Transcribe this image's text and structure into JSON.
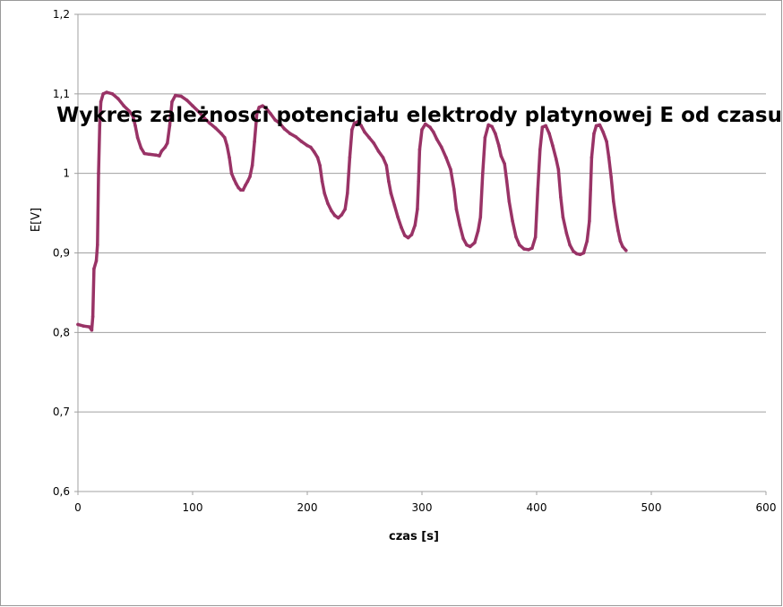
{
  "chart_data": {
    "type": "line",
    "title": "Wykres zależnosci potencjału elektrody platynowej E od czasu",
    "xlabel": "czas [s]",
    "ylabel": "E[V]",
    "xlim": [
      0,
      600
    ],
    "ylim": [
      0.6,
      1.2
    ],
    "x_ticks": [
      "0",
      "100",
      "200",
      "300",
      "400",
      "500",
      "600"
    ],
    "y_ticks": [
      "0,6",
      "0,7",
      "0,8",
      "0,9",
      "1",
      "1,1",
      "1,2"
    ],
    "grid": "horizontal",
    "legend": "none",
    "series": [
      {
        "color": "#993366",
        "points": [
          [
            0,
            0.81
          ],
          [
            5,
            0.808
          ],
          [
            10,
            0.807
          ],
          [
            12,
            0.803
          ],
          [
            13,
            0.82
          ],
          [
            14,
            0.88
          ],
          [
            16,
            0.89
          ],
          [
            17,
            0.91
          ],
          [
            18,
            1.0
          ],
          [
            19,
            1.06
          ],
          [
            20,
            1.09
          ],
          [
            22,
            1.1
          ],
          [
            25,
            1.102
          ],
          [
            30,
            1.1
          ],
          [
            35,
            1.094
          ],
          [
            40,
            1.085
          ],
          [
            45,
            1.078
          ],
          [
            48,
            1.072
          ],
          [
            50,
            1.06
          ],
          [
            52,
            1.045
          ],
          [
            55,
            1.032
          ],
          [
            58,
            1.025
          ],
          [
            62,
            1.024
          ],
          [
            68,
            1.023
          ],
          [
            71,
            1.022
          ],
          [
            73,
            1.028
          ],
          [
            76,
            1.033
          ],
          [
            78,
            1.038
          ],
          [
            80,
            1.06
          ],
          [
            82,
            1.09
          ],
          [
            85,
            1.098
          ],
          [
            90,
            1.097
          ],
          [
            95,
            1.092
          ],
          [
            100,
            1.085
          ],
          [
            105,
            1.078
          ],
          [
            110,
            1.07
          ],
          [
            115,
            1.063
          ],
          [
            120,
            1.057
          ],
          [
            125,
            1.05
          ],
          [
            128,
            1.045
          ],
          [
            130,
            1.035
          ],
          [
            132,
            1.02
          ],
          [
            134,
            1.0
          ],
          [
            136,
            0.993
          ],
          [
            138,
            0.987
          ],
          [
            140,
            0.982
          ],
          [
            142,
            0.979
          ],
          [
            144,
            0.979
          ],
          [
            146,
            0.985
          ],
          [
            148,
            0.99
          ],
          [
            150,
            0.996
          ],
          [
            152,
            1.01
          ],
          [
            154,
            1.04
          ],
          [
            156,
            1.075
          ],
          [
            158,
            1.083
          ],
          [
            161,
            1.085
          ],
          [
            164,
            1.082
          ],
          [
            168,
            1.075
          ],
          [
            172,
            1.067
          ],
          [
            176,
            1.063
          ],
          [
            180,
            1.056
          ],
          [
            185,
            1.05
          ],
          [
            190,
            1.046
          ],
          [
            195,
            1.04
          ],
          [
            200,
            1.035
          ],
          [
            203,
            1.033
          ],
          [
            206,
            1.027
          ],
          [
            209,
            1.02
          ],
          [
            211,
            1.01
          ],
          [
            213,
            0.99
          ],
          [
            215,
            0.975
          ],
          [
            218,
            0.962
          ],
          [
            221,
            0.953
          ],
          [
            224,
            0.947
          ],
          [
            227,
            0.944
          ],
          [
            230,
            0.948
          ],
          [
            233,
            0.955
          ],
          [
            235,
            0.975
          ],
          [
            237,
            1.02
          ],
          [
            239,
            1.055
          ],
          [
            241,
            1.063
          ],
          [
            244,
            1.065
          ],
          [
            247,
            1.06
          ],
          [
            250,
            1.052
          ],
          [
            254,
            1.045
          ],
          [
            258,
            1.038
          ],
          [
            262,
            1.028
          ],
          [
            266,
            1.02
          ],
          [
            269,
            1.01
          ],
          [
            271,
            0.99
          ],
          [
            273,
            0.975
          ],
          [
            276,
            0.96
          ],
          [
            279,
            0.945
          ],
          [
            282,
            0.932
          ],
          [
            285,
            0.922
          ],
          [
            288,
            0.919
          ],
          [
            291,
            0.923
          ],
          [
            294,
            0.935
          ],
          [
            296,
            0.955
          ],
          [
            297,
            0.99
          ],
          [
            298,
            1.03
          ],
          [
            300,
            1.055
          ],
          [
            303,
            1.062
          ],
          [
            307,
            1.058
          ],
          [
            310,
            1.052
          ],
          [
            313,
            1.043
          ],
          [
            317,
            1.033
          ],
          [
            321,
            1.02
          ],
          [
            325,
            1.005
          ],
          [
            328,
            0.98
          ],
          [
            330,
            0.955
          ],
          [
            333,
            0.935
          ],
          [
            336,
            0.918
          ],
          [
            339,
            0.91
          ],
          [
            342,
            0.908
          ],
          [
            346,
            0.913
          ],
          [
            349,
            0.928
          ],
          [
            351,
            0.945
          ],
          [
            353,
            1.0
          ],
          [
            355,
            1.045
          ],
          [
            358,
            1.061
          ],
          [
            361,
            1.059
          ],
          [
            364,
            1.05
          ],
          [
            367,
            1.035
          ],
          [
            369,
            1.022
          ],
          [
            372,
            1.012
          ],
          [
            374,
            0.99
          ],
          [
            376,
            0.965
          ],
          [
            379,
            0.94
          ],
          [
            382,
            0.92
          ],
          [
            385,
            0.91
          ],
          [
            389,
            0.905
          ],
          [
            393,
            0.904
          ],
          [
            396,
            0.906
          ],
          [
            399,
            0.92
          ],
          [
            401,
            0.98
          ],
          [
            403,
            1.03
          ],
          [
            405,
            1.058
          ],
          [
            408,
            1.06
          ],
          [
            411,
            1.05
          ],
          [
            414,
            1.035
          ],
          [
            417,
            1.018
          ],
          [
            419,
            1.005
          ],
          [
            421,
            0.97
          ],
          [
            423,
            0.945
          ],
          [
            426,
            0.925
          ],
          [
            429,
            0.91
          ],
          [
            432,
            0.902
          ],
          [
            435,
            0.899
          ],
          [
            438,
            0.898
          ],
          [
            441,
            0.9
          ],
          [
            444,
            0.915
          ],
          [
            446,
            0.94
          ],
          [
            447,
            0.98
          ],
          [
            448,
            1.02
          ],
          [
            450,
            1.05
          ],
          [
            452,
            1.06
          ],
          [
            455,
            1.061
          ],
          [
            458,
            1.052
          ],
          [
            461,
            1.04
          ],
          [
            463,
            1.02
          ],
          [
            465,
            0.995
          ],
          [
            467,
            0.965
          ],
          [
            469,
            0.945
          ],
          [
            471,
            0.928
          ],
          [
            473,
            0.915
          ],
          [
            475,
            0.908
          ],
          [
            478,
            0.903
          ]
        ]
      }
    ]
  }
}
